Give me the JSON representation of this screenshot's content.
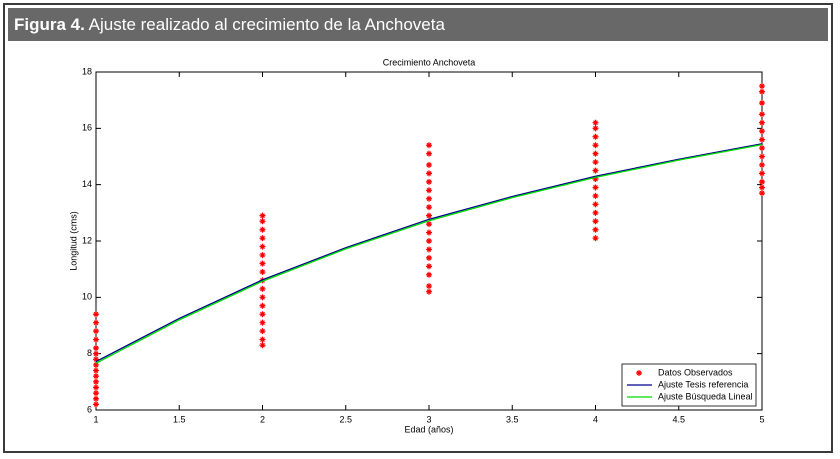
{
  "header": {
    "label": "Figura 4.",
    "title": "Ajuste realizado al crecimiento de la Anchoveta"
  },
  "chart_data": {
    "type": "scatter",
    "title": "Crecimiento Anchoveta",
    "x_label": "Edad (años)",
    "y_label": "Longitud (cms)",
    "xlim": [
      1,
      5
    ],
    "ylim": [
      6,
      18
    ],
    "xticks": [
      1,
      1.5,
      2,
      2.5,
      3,
      3.5,
      4,
      4.5,
      5
    ],
    "yticks": [
      6,
      8,
      10,
      12,
      14,
      16,
      18
    ],
    "grid": false,
    "legend": "lower right",
    "series": [
      {
        "name": "Datos Observados",
        "type": "scatter",
        "color": "#ff0000",
        "x": [
          1,
          1,
          1,
          1,
          1,
          1,
          1,
          1,
          1,
          1,
          1,
          1,
          1,
          1,
          1,
          2,
          2,
          2,
          2,
          2,
          2,
          2,
          2,
          2,
          2,
          2,
          2,
          2,
          2,
          2,
          2,
          2,
          3,
          3,
          3,
          3,
          3,
          3,
          3,
          3,
          3,
          3,
          3,
          3,
          3,
          3,
          3,
          3,
          3,
          3,
          4,
          4,
          4,
          4,
          4,
          4,
          4,
          4,
          4,
          4,
          4,
          4,
          4,
          4,
          4,
          5,
          5,
          5,
          5,
          5,
          5,
          5,
          5,
          5,
          5,
          5,
          5,
          5,
          5
        ],
        "values": [
          6.2,
          6.4,
          6.6,
          6.8,
          7.0,
          7.2,
          7.4,
          7.6,
          7.8,
          8.0,
          8.2,
          8.5,
          8.8,
          9.1,
          9.4,
          8.3,
          8.5,
          8.8,
          9.1,
          9.4,
          9.7,
          10.0,
          10.3,
          10.6,
          10.9,
          11.2,
          11.5,
          11.8,
          12.1,
          12.4,
          12.7,
          12.9,
          10.2,
          10.4,
          10.8,
          11.1,
          11.4,
          11.7,
          12.0,
          12.3,
          12.6,
          12.9,
          13.2,
          13.5,
          13.8,
          14.1,
          14.4,
          14.7,
          15.1,
          15.4,
          12.1,
          12.4,
          12.7,
          13.0,
          13.3,
          13.6,
          13.9,
          14.2,
          14.5,
          14.8,
          15.1,
          15.4,
          15.7,
          16.0,
          16.2,
          13.7,
          13.9,
          14.1,
          14.4,
          14.7,
          15.0,
          15.3,
          15.6,
          15.9,
          16.2,
          16.5,
          16.9,
          17.3,
          17.5
        ]
      },
      {
        "name": "Ajuste Tesis referencia",
        "type": "line",
        "color": "#00008b",
        "x": [
          1,
          1.5,
          2,
          2.5,
          3,
          3.5,
          4,
          4.5,
          5
        ],
        "values": [
          7.72,
          9.25,
          10.62,
          11.76,
          12.77,
          13.58,
          14.3,
          14.9,
          15.45
        ]
      },
      {
        "name": "Ajuste Búsqueda Lineal",
        "type": "line",
        "color": "#00dd00",
        "x": [
          1,
          1.5,
          2,
          2.5,
          3,
          3.5,
          4,
          4.5,
          5
        ],
        "values": [
          7.66,
          9.2,
          10.57,
          11.72,
          12.72,
          13.54,
          14.26,
          14.87,
          15.42
        ]
      }
    ]
  }
}
